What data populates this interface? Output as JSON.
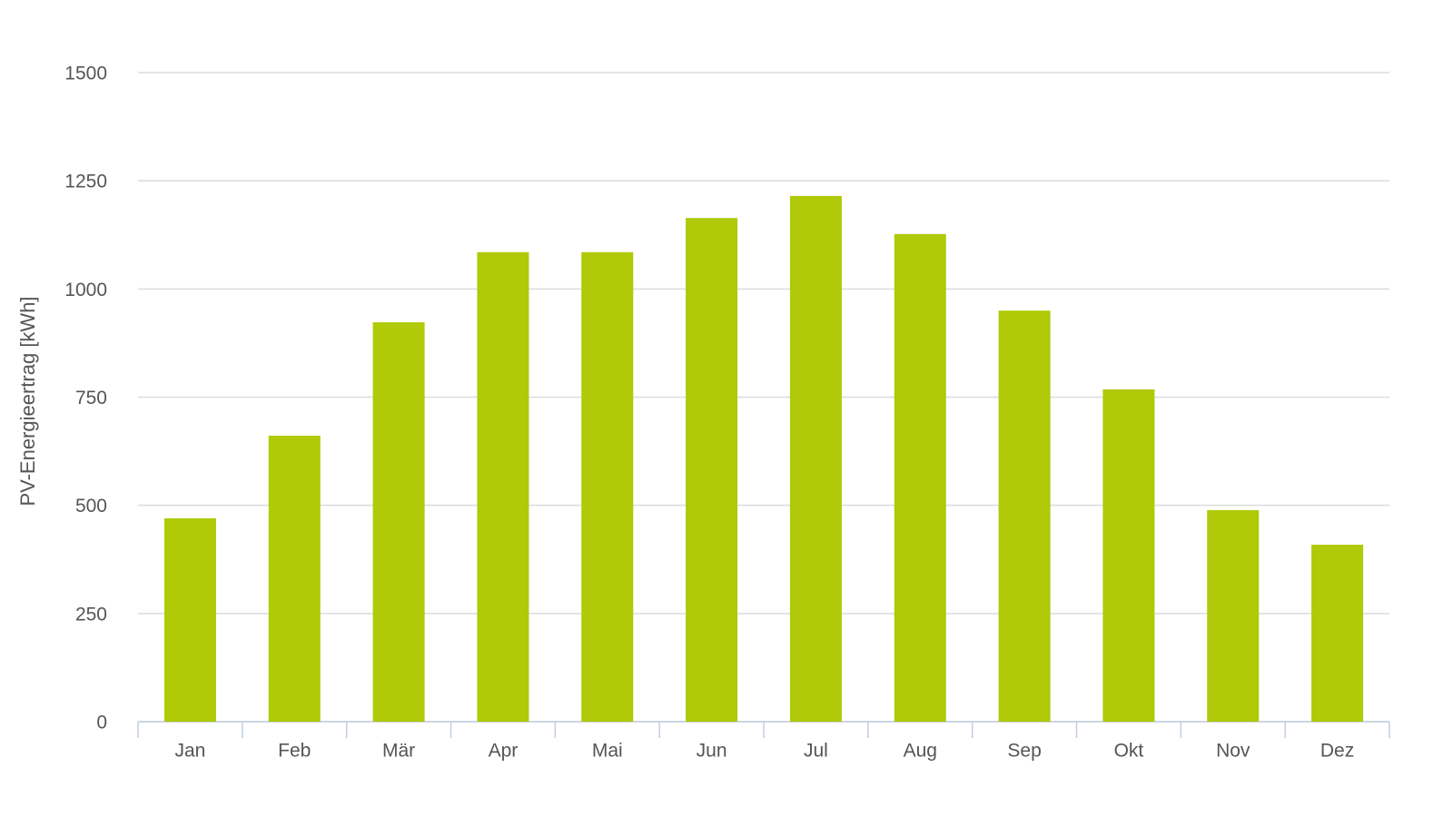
{
  "chart_data": {
    "type": "bar",
    "y_label": "PV-Energieertrag [kWh]",
    "categories": [
      "Jan",
      "Feb",
      "Mär",
      "Apr",
      "Mai",
      "Jun",
      "Jul",
      "Aug",
      "Sep",
      "Okt",
      "Nov",
      "Dez"
    ],
    "values": [
      470,
      661,
      923,
      1085,
      1085,
      1164,
      1215,
      1127,
      950,
      768,
      489,
      409
    ],
    "color": "#b0c908",
    "ylim": [
      0,
      1500
    ],
    "yticks": [
      0,
      250,
      500,
      750,
      1000,
      1250,
      1500
    ],
    "grid": true
  }
}
